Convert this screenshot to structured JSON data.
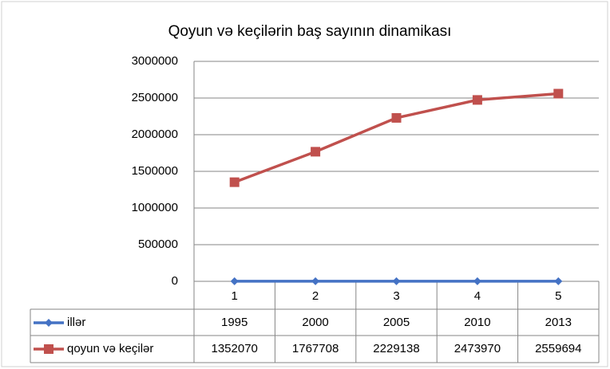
{
  "chart_data": {
    "type": "line",
    "title": "Qoyun və keçilərin baş sayının dinamikası",
    "categories": [
      "1",
      "2",
      "3",
      "4",
      "5"
    ],
    "series": [
      {
        "name": "illər",
        "color": "#4472c4",
        "marker": "diamond",
        "values": [
          1995,
          2000,
          2005,
          2010,
          2013
        ]
      },
      {
        "name": "qoyun və keçilər",
        "color": "#c0504d",
        "marker": "square",
        "values": [
          1352070,
          1767708,
          2229138,
          2473970,
          2559694
        ]
      }
    ],
    "ylim": [
      0,
      3000000
    ],
    "yticks": [
      0,
      500000,
      1000000,
      1500000,
      2000000,
      2500000,
      3000000
    ],
    "grid": true,
    "data_table": true
  }
}
